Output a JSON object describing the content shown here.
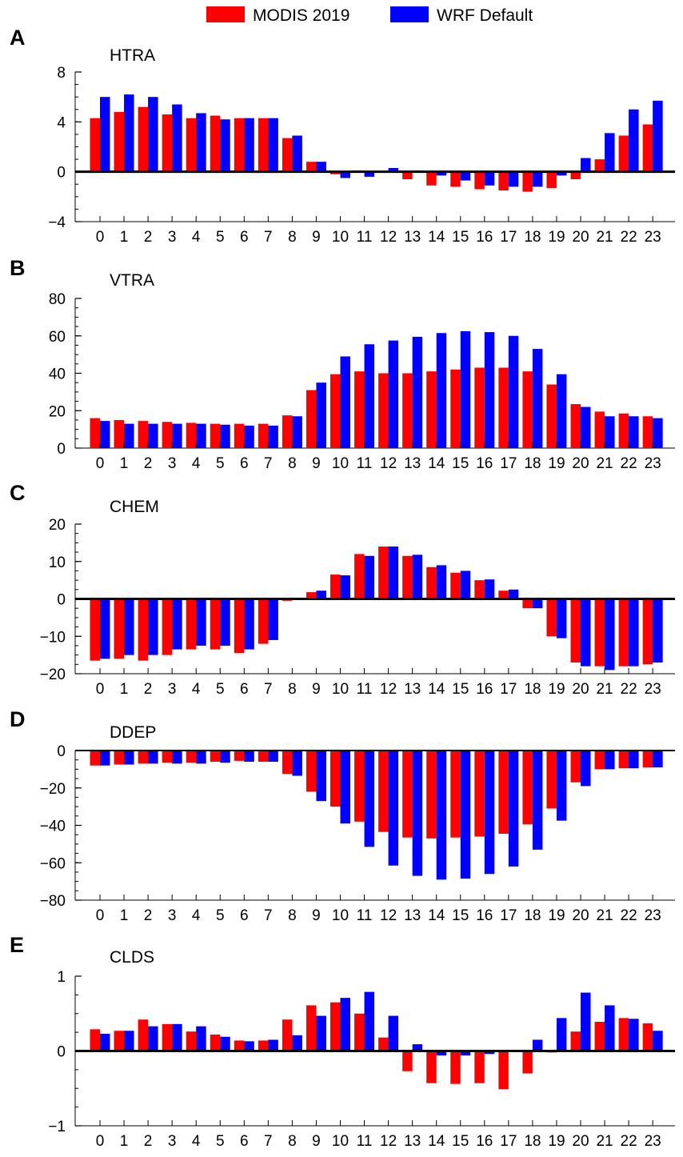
{
  "legend": [
    {
      "name": "MODIS 2019",
      "color": "#ff0000"
    },
    {
      "name": "WRF Default",
      "color": "#0000ff"
    }
  ],
  "chart_data": [
    {
      "type": "bar",
      "panel": "A",
      "title": "HTRA",
      "categories": [
        "0",
        "1",
        "2",
        "3",
        "4",
        "5",
        "6",
        "7",
        "8",
        "9",
        "10",
        "11",
        "12",
        "13",
        "14",
        "15",
        "16",
        "17",
        "18",
        "19",
        "20",
        "21",
        "22",
        "23"
      ],
      "ylim": [
        -4,
        8
      ],
      "yticks": [
        -4,
        0,
        4,
        8
      ],
      "series": [
        {
          "name": "MODIS 2019",
          "values": [
            4.3,
            4.8,
            5.2,
            4.6,
            4.3,
            4.5,
            4.3,
            4.3,
            2.7,
            0.8,
            -0.2,
            0.1,
            0.0,
            -0.6,
            -1.1,
            -1.2,
            -1.4,
            -1.5,
            -1.6,
            -1.3,
            -0.6,
            1.0,
            2.9,
            3.8
          ]
        },
        {
          "name": "WRF Default",
          "values": [
            6.0,
            6.2,
            6.0,
            5.4,
            4.7,
            4.2,
            4.3,
            4.3,
            2.9,
            0.8,
            -0.5,
            -0.4,
            0.3,
            0.1,
            -0.3,
            -0.7,
            -1.1,
            -1.2,
            -1.2,
            -0.3,
            1.1,
            3.1,
            5.0,
            5.7
          ]
        }
      ]
    },
    {
      "type": "bar",
      "panel": "B",
      "title": "VTRA",
      "categories": [
        "0",
        "1",
        "2",
        "3",
        "4",
        "5",
        "6",
        "7",
        "8",
        "9",
        "10",
        "11",
        "12",
        "13",
        "14",
        "15",
        "16",
        "17",
        "18",
        "19",
        "20",
        "21",
        "22",
        "23"
      ],
      "ylim": [
        0,
        80
      ],
      "yticks": [
        0,
        20,
        40,
        60,
        80
      ],
      "series": [
        {
          "name": "MODIS 2019",
          "values": [
            16,
            15,
            14.5,
            14,
            13.5,
            13,
            13,
            13,
            17.5,
            31,
            39.5,
            41,
            40,
            40,
            41,
            42,
            43,
            43,
            41,
            34,
            23.5,
            19.5,
            18.5,
            17
          ]
        },
        {
          "name": "WRF Default",
          "values": [
            14.5,
            13,
            13,
            13,
            13,
            12.5,
            12,
            12,
            17,
            35,
            49,
            55.5,
            57.5,
            59.5,
            61.5,
            62.5,
            62,
            60,
            53,
            39.5,
            22,
            17,
            17,
            16
          ]
        }
      ]
    },
    {
      "type": "bar",
      "panel": "C",
      "title": "CHEM",
      "categories": [
        "0",
        "1",
        "2",
        "3",
        "4",
        "5",
        "6",
        "7",
        "8",
        "9",
        "10",
        "11",
        "12",
        "13",
        "14",
        "15",
        "16",
        "17",
        "18",
        "19",
        "20",
        "21",
        "22",
        "23"
      ],
      "ylim": [
        -20,
        20
      ],
      "yticks": [
        -20,
        -10,
        0,
        10,
        20
      ],
      "series": [
        {
          "name": "MODIS 2019",
          "values": [
            -16.5,
            -16,
            -16.5,
            -15,
            -13.5,
            -13.5,
            -14.5,
            -12,
            -0.5,
            1.8,
            6.5,
            12,
            14,
            11.5,
            8.5,
            7,
            5,
            2.2,
            -2.5,
            -10,
            -17,
            -18,
            -18,
            -17.5
          ]
        },
        {
          "name": "WRF Default",
          "values": [
            -16,
            -15,
            -15,
            -13.5,
            -12.5,
            -12.5,
            -13.5,
            -11,
            0,
            2.2,
            6.3,
            11.5,
            14,
            11.8,
            9,
            7.5,
            5.2,
            2.5,
            -2.5,
            -10.5,
            -18,
            -19,
            -18,
            -17
          ]
        }
      ]
    },
    {
      "type": "bar",
      "panel": "D",
      "title": "DDEP",
      "categories": [
        "0",
        "1",
        "2",
        "3",
        "4",
        "5",
        "6",
        "7",
        "8",
        "9",
        "10",
        "11",
        "12",
        "13",
        "14",
        "15",
        "16",
        "17",
        "18",
        "19",
        "20",
        "21",
        "22",
        "23"
      ],
      "ylim": [
        -80,
        0
      ],
      "yticks": [
        -80,
        -60,
        -40,
        -20,
        0
      ],
      "series": [
        {
          "name": "MODIS 2019",
          "values": [
            -8,
            -7.5,
            -7,
            -6.5,
            -6.5,
            -6,
            -5.5,
            -6,
            -12.5,
            -22,
            -30,
            -38,
            -43.5,
            -46.5,
            -47,
            -46.5,
            -46,
            -44.5,
            -39.5,
            -31,
            -17,
            -10,
            -9.5,
            -9
          ]
        },
        {
          "name": "WRF Default",
          "values": [
            -8,
            -7.5,
            -7,
            -7,
            -7,
            -6.5,
            -6,
            -6,
            -13.5,
            -27,
            -39,
            -51.5,
            -61.5,
            -67,
            -69,
            -68.5,
            -66,
            -62,
            -53,
            -37.5,
            -19,
            -10,
            -9.5,
            -9
          ]
        }
      ]
    },
    {
      "type": "bar",
      "panel": "E",
      "title": "CLDS",
      "categories": [
        "0",
        "1",
        "2",
        "3",
        "4",
        "5",
        "6",
        "7",
        "8",
        "9",
        "10",
        "11",
        "12",
        "13",
        "14",
        "15",
        "16",
        "17",
        "18",
        "19",
        "20",
        "21",
        "22",
        "23"
      ],
      "ylim": [
        -1,
        1
      ],
      "yticks": [
        -1,
        0,
        1
      ],
      "series": [
        {
          "name": "MODIS 2019",
          "values": [
            0.29,
            0.27,
            0.42,
            0.36,
            0.26,
            0.22,
            0.14,
            0.14,
            0.42,
            0.61,
            0.65,
            0.5,
            0.18,
            -0.27,
            -0.43,
            -0.44,
            -0.43,
            -0.51,
            -0.3,
            -0.02,
            0.26,
            0.39,
            0.44,
            0.37
          ]
        },
        {
          "name": "WRF Default",
          "values": [
            0.23,
            0.27,
            0.33,
            0.36,
            0.33,
            0.19,
            0.13,
            0.15,
            0.21,
            0.47,
            0.71,
            0.79,
            0.47,
            0.09,
            -0.06,
            -0.06,
            -0.04,
            0.0,
            0.15,
            0.44,
            0.78,
            0.61,
            0.43,
            0.27
          ]
        }
      ]
    }
  ]
}
